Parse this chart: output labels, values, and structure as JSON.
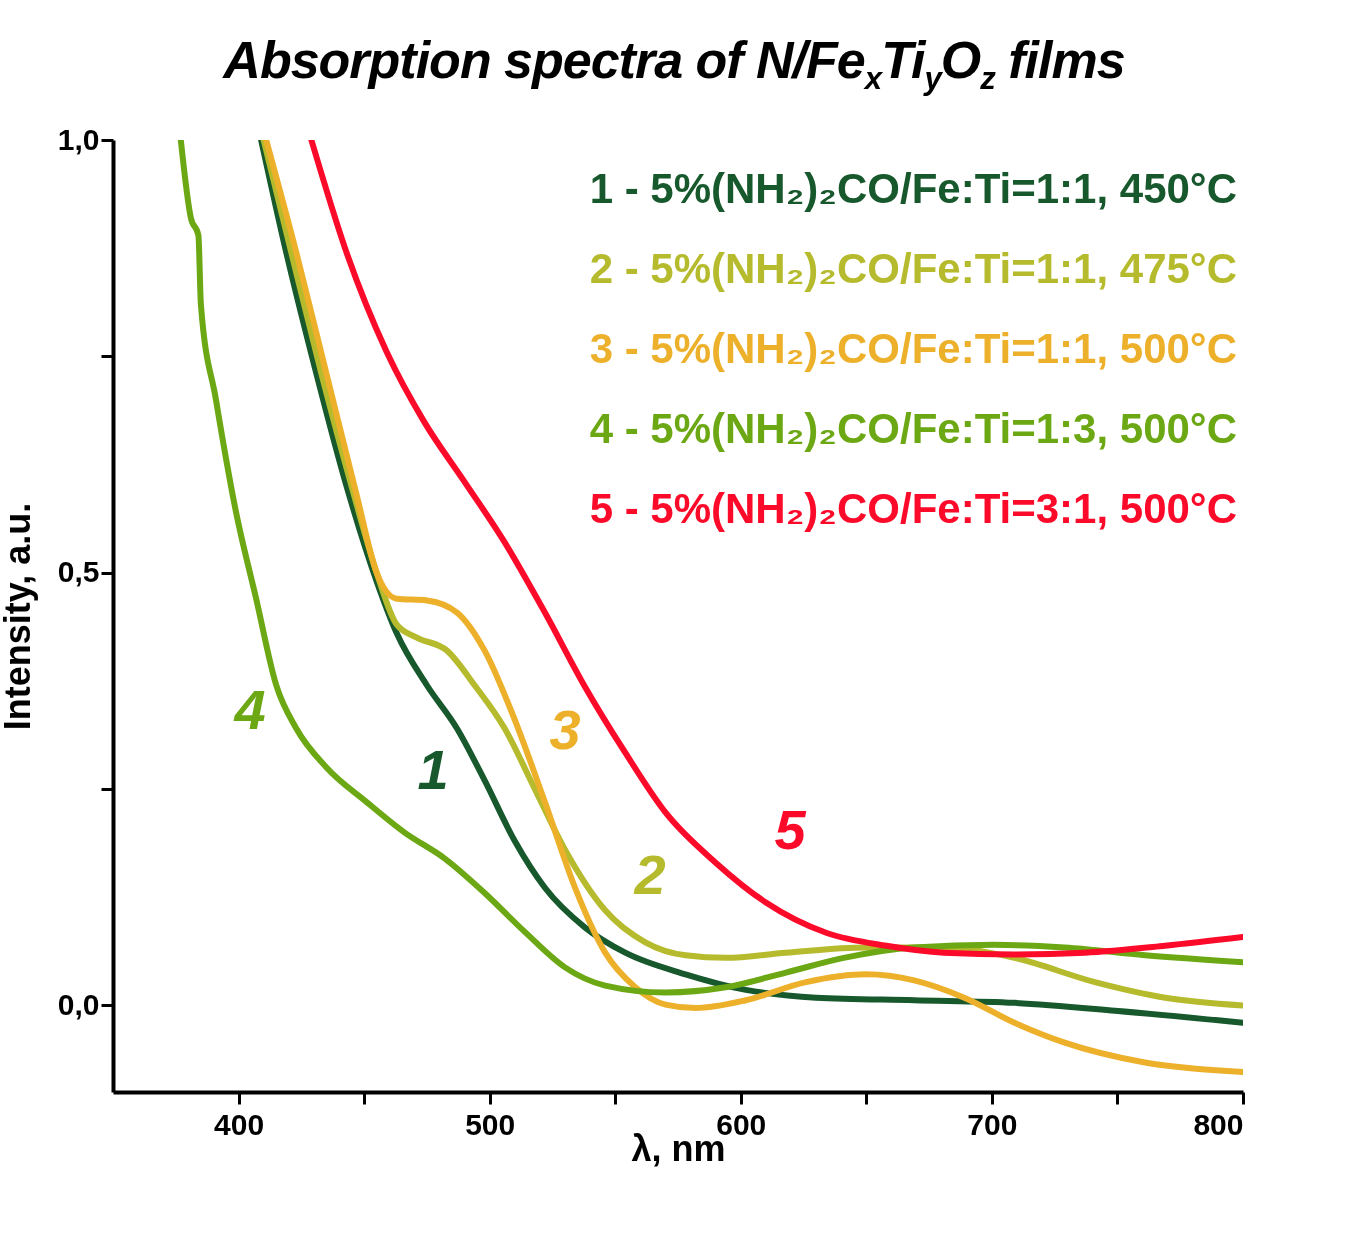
{
  "chart_data": {
    "type": "line",
    "title": "Absorption spectra of N/Fe$_{x}$Ti$_{y}$O$_{z}$ films",
    "xlabel": "λ, nm",
    "ylabel": "Intensity, a.u.",
    "xlim": [
      350,
      800
    ],
    "xticks": [
      400,
      {
        "value": 450,
        "label": null
      },
      500,
      {
        "value": 550,
        "label": null
      },
      600,
      {
        "value": 650,
        "label": null
      },
      700,
      {
        "value": 750,
        "label": null
      },
      800
    ],
    "ylim": [
      -0.1,
      1.0
    ],
    "yticks": [
      {
        "value": 0,
        "label": "0,0"
      },
      {
        "value": 0.25,
        "label": null
      },
      {
        "value": 0.5,
        "label": "0,5"
      },
      {
        "value": 0.75,
        "label": null
      },
      {
        "value": 1.0,
        "label": "1,0"
      }
    ],
    "grid": false,
    "legend": "top right",
    "marker": "none",
    "line_style": "solid",
    "series": [
      {
        "name": "1 - 5%(NH₂)₂CO/Fe:Ti=1:1, 450°C",
        "color": "#17582c",
        "x": [
          409,
          419,
          431,
          443,
          455,
          463,
          475,
          487,
          498,
          510,
          522,
          538,
          554,
          578,
          602,
          630,
          669,
          709,
          749,
          800
        ],
        "values": [
          1.0,
          0.87,
          0.73,
          0.6,
          0.49,
          0.43,
          0.37,
          0.32,
          0.26,
          0.19,
          0.136,
          0.09,
          0.061,
          0.036,
          0.018,
          0.009,
          0.006,
          0.003,
          -0.006,
          -0.02
        ]
      },
      {
        "name": "2 - 5%(NH₂)₂CO/Fe:Ti=1:1, 475°C",
        "color": "#b5bb2c",
        "x": [
          410,
          421,
          433,
          445,
          455,
          463,
          471,
          483,
          494,
          506,
          518,
          530,
          546,
          562,
          578,
          594,
          618,
          650,
          681,
          709,
          741,
          769,
          800
        ],
        "values": [
          1.0,
          0.87,
          0.73,
          0.6,
          0.5,
          0.44,
          0.425,
          0.41,
          0.37,
          0.32,
          0.25,
          0.18,
          0.11,
          0.073,
          0.058,
          0.055,
          0.061,
          0.067,
          0.067,
          0.055,
          0.027,
          0.009,
          0.0
        ]
      },
      {
        "name": "3 - 5%(NH₂)₂CO/Fe:Ti=1:1, 500°C",
        "color": "#edb02b",
        "x": [
          411,
          423,
          435,
          447,
          455,
          463,
          475,
          487,
          498,
          510,
          522,
          534,
          546,
          558,
          570,
          582,
          602,
          626,
          650,
          669,
          689,
          709,
          729,
          761,
          800
        ],
        "values": [
          1.0,
          0.87,
          0.73,
          0.59,
          0.5,
          0.47,
          0.468,
          0.454,
          0.41,
          0.33,
          0.235,
          0.136,
          0.061,
          0.021,
          0.001,
          -0.003,
          0.006,
          0.027,
          0.036,
          0.029,
          0.009,
          -0.02,
          -0.043,
          -0.066,
          -0.077
        ]
      },
      {
        "name": "4 - 5%(NH₂)₂CO/Fe:Ti=1:3, 500°C",
        "color": "#6ca714",
        "x": [
          377,
          381,
          384,
          385,
          391,
          399,
          407,
          415,
          423,
          435,
          451,
          466,
          482,
          498,
          514,
          530,
          546,
          570,
          594,
          618,
          641,
          669,
          701,
          729,
          761,
          800
        ],
        "values": [
          1.0,
          0.91,
          0.89,
          0.81,
          0.7,
          0.57,
          0.47,
          0.37,
          0.32,
          0.275,
          0.235,
          0.2,
          0.17,
          0.13,
          0.085,
          0.044,
          0.023,
          0.015,
          0.021,
          0.038,
          0.055,
          0.067,
          0.07,
          0.067,
          0.058,
          0.05
        ]
      },
      {
        "name": "5 - 5%(NH₂)₂CO/Fe:Ti=3:1, 500°C",
        "color": "#fc0a2a",
        "x": [
          429,
          443,
          459,
          474,
          490,
          506,
          522,
          538,
          554,
          570,
          590,
          610,
          634,
          658,
          681,
          709,
          737,
          769,
          800
        ],
        "values": [
          1.0,
          0.87,
          0.755,
          0.674,
          0.605,
          0.535,
          0.454,
          0.368,
          0.292,
          0.223,
          0.165,
          0.119,
          0.084,
          0.069,
          0.061,
          0.059,
          0.061,
          0.069,
          0.079
        ]
      }
    ],
    "annotations": [
      "1",
      "2",
      "3",
      "4",
      "5"
    ]
  }
}
